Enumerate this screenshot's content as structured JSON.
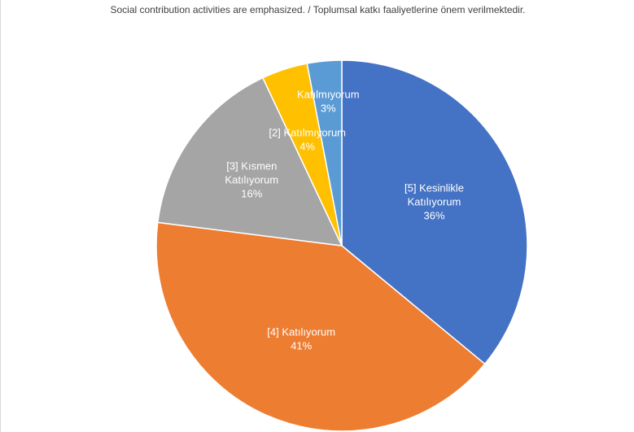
{
  "chart_data": {
    "type": "pie",
    "title": "Social contribution activities are emphasized. / Toplumsal katkı faaliyetlerine önem verilmektedir.",
    "categories": [
      "[5] Kesinlikle Katılıyorum",
      "[4] Katılıyorum",
      "[3] Kısmen Katılıyorum",
      "[2] Katılmıyorum",
      "Katılmıyorum"
    ],
    "values": [
      36,
      41,
      16,
      4,
      3
    ],
    "value_labels": [
      "36%",
      "41%",
      "16%",
      "4%",
      "3%"
    ],
    "label_lines": [
      [
        "[5] Kesinlikle",
        "Katılıyorum",
        "36%"
      ],
      [
        "[4] Katılıyorum",
        "41%"
      ],
      [
        "[3] Kısmen",
        "Katılıyorum",
        "16%"
      ],
      [
        "[2] Katılmıyorum",
        "4%"
      ],
      [
        "Katılmıyorum",
        "3%"
      ]
    ],
    "colors": [
      "#4472c4",
      "#ed7d31",
      "#a5a5a5",
      "#ffc000",
      "#5b9bd5"
    ]
  }
}
